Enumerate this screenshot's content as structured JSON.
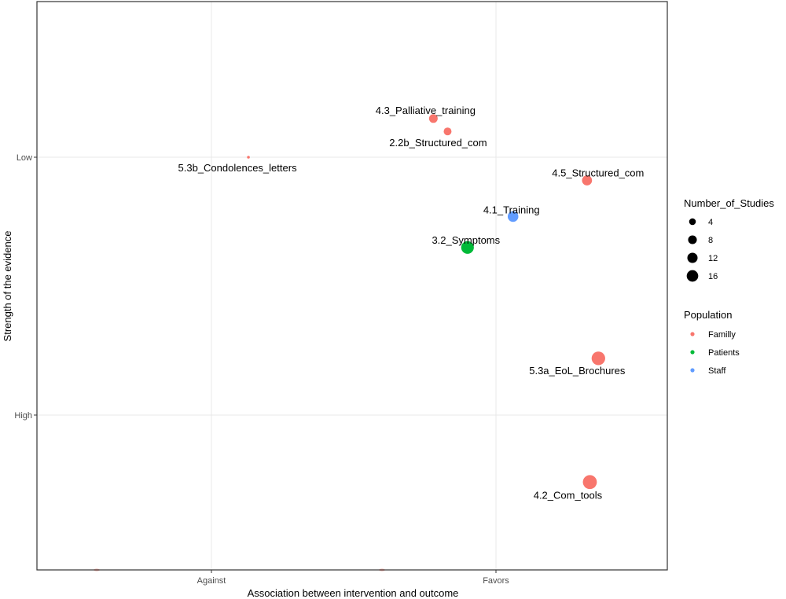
{
  "chart_data": {
    "type": "scatter",
    "title": "",
    "xlabel": "Association between intervention and outcome",
    "ylabel": "Strength of the evidence",
    "x_ticks": [
      "Against",
      "Favors"
    ],
    "y_ticks": [
      "Low",
      "High"
    ],
    "grid": true,
    "legend_position": "right",
    "size_legend": {
      "title": "Number_of_Studies",
      "values": [
        4,
        8,
        12,
        16
      ]
    },
    "color_legend": {
      "title": "Population",
      "entries": [
        {
          "name": "Familly",
          "color": "#F8766D"
        },
        {
          "name": "Patients",
          "color": "#00BA38"
        },
        {
          "name": "Staff",
          "color": "#619CFF"
        }
      ]
    },
    "points": [
      {
        "label": "4.3_Palliative_training",
        "population": "Familly",
        "n_studies": 4,
        "x": 0.78,
        "y": 0.85
      },
      {
        "label": "2.2b_Structured_com",
        "population": "Familly",
        "n_studies": 3,
        "x": 0.83,
        "y": 0.9
      },
      {
        "label": "5.3b_Condolences_letters",
        "population": "Familly",
        "n_studies": 1,
        "x": 0.13,
        "y": 1.0
      },
      {
        "label": "4.5_Structured_com",
        "population": "Familly",
        "n_studies": 6,
        "x": 1.32,
        "y": 1.09
      },
      {
        "label": "4.1_Training",
        "population": "Staff",
        "n_studies": 7,
        "x": 1.06,
        "y": 1.23
      },
      {
        "label": "3.2_Symptoms",
        "population": "Patients",
        "n_studies": 11,
        "x": 0.9,
        "y": 1.35
      },
      {
        "label": "5.3a_EoL_Brochures",
        "population": "Familly",
        "n_studies": 13,
        "x": 1.36,
        "y": 1.78
      },
      {
        "label": "4.2_Com_tools",
        "population": "Familly",
        "n_studies": 14,
        "x": 1.33,
        "y": 2.26
      }
    ]
  }
}
